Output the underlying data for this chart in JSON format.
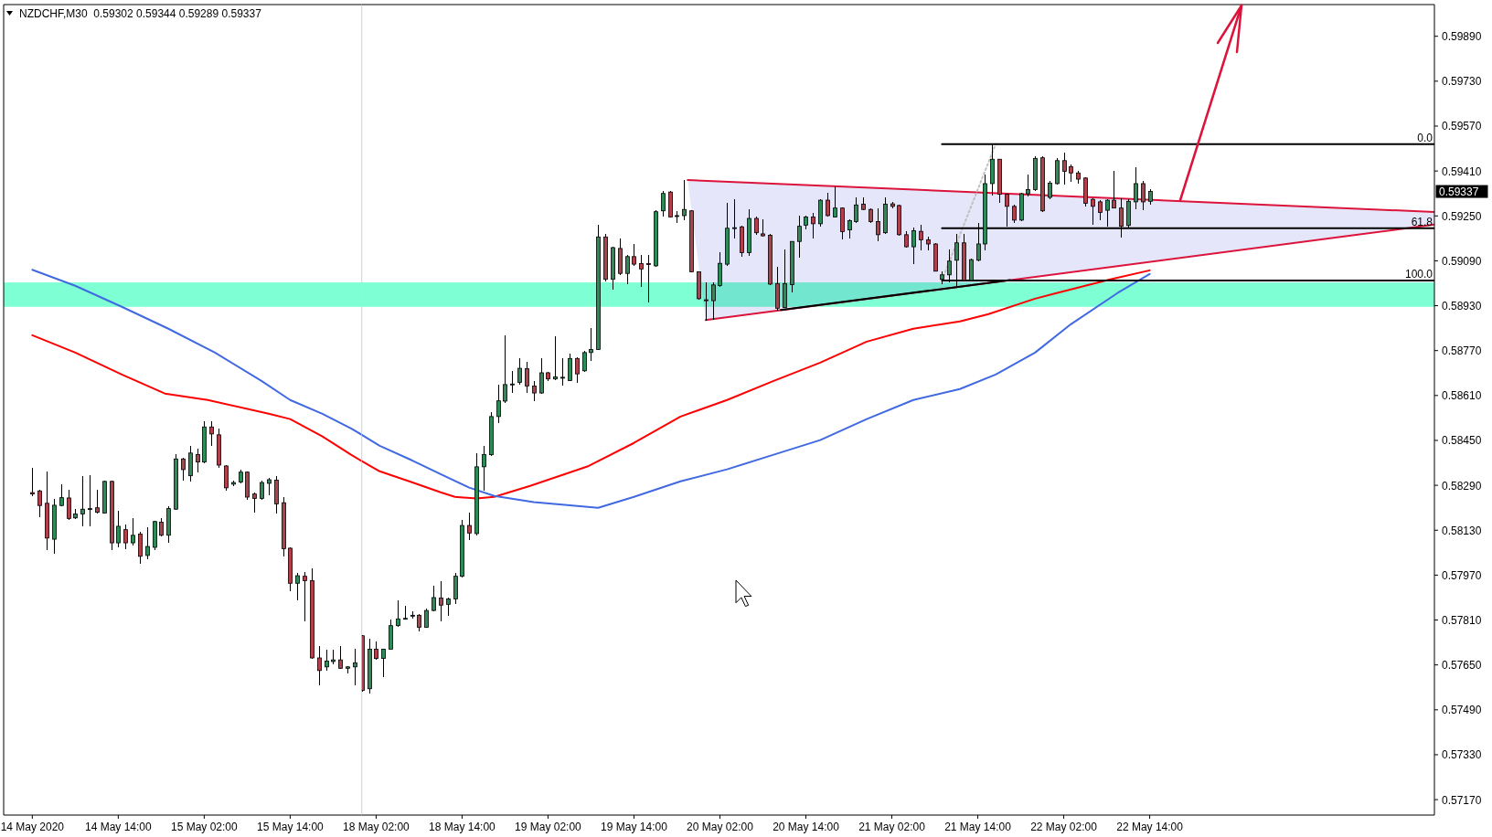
{
  "chart_data": [
    {
      "type": "candlestick",
      "title": "NZDCHF,M30  0.59302 0.59344 0.59289 0.59337",
      "tick_labels": "x",
      "xlim": [
        "2020-05-13T22:00",
        "2020-05-16T00:00"
      ],
      "ylim": [
        0.57115,
        0.60003
      ],
      "xticks": [
        {
          "value": "2020-05-14T02:00",
          "label": "14 May 2020"
        },
        {
          "value": "2020-05-14T14:00",
          "label": "14 May 14:00"
        },
        {
          "value": "2020-05-15T02:00",
          "label": "15 May 02:00"
        },
        {
          "value": "2020-05-15T14:00",
          "label": "15 May 14:00"
        }
      ],
      "x": [
        "2020-05-14T02:00",
        "2020-05-14T03:00",
        "2020-05-14T04:00",
        "2020-05-14T05:00",
        "2020-05-14T06:00",
        "2020-05-14T07:00",
        "2020-05-14T08:00",
        "2020-05-14T09:00",
        "2020-05-14T10:00",
        "2020-05-14T11:00",
        "2020-05-14T12:00",
        "2020-05-14T13:00",
        "2020-05-14T14:00",
        "2020-05-14T15:00",
        "2020-05-14T16:00",
        "2020-05-14T17:00",
        "2020-05-14T18:00",
        "2020-05-14T19:00",
        "2020-05-14T20:00",
        "2020-05-14T21:00",
        "2020-05-14T22:00",
        "2020-05-14T23:00",
        "2020-05-15T00:00",
        "2020-05-15T01:00",
        "2020-05-15T02:00",
        "2020-05-15T03:00",
        "2020-05-15T04:00",
        "2020-05-15T05:00",
        "2020-05-15T06:00",
        "2020-05-15T07:00",
        "2020-05-15T08:00",
        "2020-05-15T09:00",
        "2020-05-15T10:00",
        "2020-05-15T11:00",
        "2020-05-15T12:00",
        "2020-05-15T13:00",
        "2020-05-15T14:00",
        "2020-05-15T15:00",
        "2020-05-15T16:00",
        "2020-05-15T17:00",
        "2020-05-15T18:00",
        "2020-05-15T19:00",
        "2020-05-15T20:00",
        "2020-05-15T21:00",
        "2020-05-15T22:00",
        "2020-05-15T23:00"
      ],
      "ohlc": [
        [
          0.58264,
          0.58351,
          0.5825,
          0.58259
        ],
        [
          0.5827,
          0.58275,
          0.58178,
          0.58218
        ],
        [
          0.58226,
          0.5834,
          0.58058,
          0.58102
        ],
        [
          0.58098,
          0.58243,
          0.58047,
          0.58219
        ],
        [
          0.58218,
          0.58294,
          0.58216,
          0.58246
        ],
        [
          0.58245,
          0.58275,
          0.58167,
          0.58172
        ],
        [
          0.58174,
          0.58205,
          0.5817,
          0.58188
        ],
        [
          0.58188,
          0.58324,
          0.58145,
          0.58205
        ],
        [
          0.58205,
          0.58326,
          0.58145,
          0.58207
        ],
        [
          0.5821,
          0.58275,
          0.58188,
          0.58194
        ],
        [
          0.58191,
          0.58308,
          0.58188,
          0.58304
        ],
        [
          0.58304,
          0.58308,
          0.58058,
          0.58085
        ],
        [
          0.58085,
          0.58199,
          0.58069,
          0.58144
        ],
        [
          0.58132,
          0.5815,
          0.58064,
          0.58085
        ],
        [
          0.58085,
          0.58174,
          0.58074,
          0.58112
        ],
        [
          0.58116,
          0.58123,
          0.58009,
          0.58037
        ],
        [
          0.5804,
          0.5814,
          0.58026,
          0.58072
        ],
        [
          0.58069,
          0.58163,
          0.58058,
          0.58161
        ],
        [
          0.58159,
          0.58172,
          0.58107,
          0.58112
        ],
        [
          0.58112,
          0.58216,
          0.58085,
          0.58207
        ],
        [
          0.58205,
          0.584,
          0.58202,
          0.58384
        ],
        [
          0.58384,
          0.58387,
          0.58308,
          0.58346
        ],
        [
          0.58324,
          0.58432,
          0.58302,
          0.58405
        ],
        [
          0.584,
          0.58422,
          0.58335,
          0.58373
        ],
        [
          0.58373,
          0.58519,
          0.5837,
          0.58498
        ],
        [
          0.58498,
          0.58519,
          0.58432,
          0.58473
        ],
        [
          0.5847,
          0.58492,
          0.58351,
          0.58362
        ],
        [
          0.58359,
          0.58362,
          0.5827,
          0.58281
        ],
        [
          0.58294,
          0.58308,
          0.58286,
          0.583
        ],
        [
          0.58302,
          0.58346,
          0.58297,
          0.58337
        ],
        [
          0.58337,
          0.5834,
          0.58237,
          0.58248
        ],
        [
          0.58259,
          0.58264,
          0.58194,
          0.58243
        ],
        [
          0.58243,
          0.58308,
          0.58237,
          0.583
        ],
        [
          0.58297,
          0.58318,
          0.58253,
          0.5831
        ],
        [
          0.58308,
          0.58324,
          0.58188,
          0.58224
        ],
        [
          0.58228,
          0.58248,
          0.58036,
          0.58064
        ],
        [
          0.58066,
          0.58069,
          0.57912,
          0.57941
        ],
        [
          0.57941,
          0.57977,
          0.57879,
          0.57968
        ],
        [
          0.57966,
          0.57982,
          0.57805,
          0.5795
        ],
        [
          0.5795,
          0.57995,
          0.57673,
          0.57675
        ],
        [
          0.57675,
          0.57716,
          0.57578,
          0.5763
        ],
        [
          0.57643,
          0.57703,
          0.5763,
          0.57664
        ],
        [
          0.57662,
          0.57703,
          0.57651,
          0.57668
        ],
        [
          0.57668,
          0.57716,
          0.57635,
          0.57638
        ],
        [
          0.57638,
          0.57646,
          0.57619,
          0.57643
        ],
        [
          0.57643,
          0.57706,
          0.57578,
          0.57657
        ]
      ],
      "bands": [
        {
          "axis": "y",
          "from": 0.58926,
          "to": 0.59013,
          "color": "#7fffd4"
        }
      ],
      "series": [
        {
          "type": "line",
          "color": "#ff0000",
          "x": [
            "2020-05-14T02:00",
            "2020-05-14T08:00",
            "2020-05-14T14:30",
            "2020-05-14T20:30",
            "2020-05-15T02:30",
            "2020-05-15T11:00",
            "2020-05-15T14:00",
            "2020-05-15T18:30",
            "2020-05-15T22:30",
            "2020-05-16T00:00"
          ],
          "values": [
            0.58825,
            0.58763,
            0.58685,
            0.58617,
            0.58594,
            0.58545,
            0.58526,
            0.58464,
            0.58399,
            0.58376
          ]
        },
        {
          "type": "line",
          "color": "#4169e1",
          "x": [
            "2020-05-14T02:00",
            "2020-05-14T08:00",
            "2020-05-14T14:30",
            "2020-05-14T21:00",
            "2020-05-15T03:30",
            "2020-05-15T10:00",
            "2020-05-15T14:00",
            "2020-05-15T18:30",
            "2020-05-15T22:30",
            "2020-05-16T00:00"
          ],
          "values": [
            0.59058,
            0.59001,
            0.58926,
            0.58848,
            0.58763,
            0.58662,
            0.58594,
            0.58545,
            0.58493,
            0.5847
          ]
        }
      ]
    },
    {
      "type": "candlestick",
      "xlim": [
        "2020-05-18T00:00",
        "2020-05-24T05:45"
      ],
      "ylim": [
        0.57115,
        0.60003
      ],
      "xticks": [
        {
          "value": "2020-05-18T02:00",
          "label": "18 May 02:00"
        },
        {
          "value": "2020-05-18T14:00",
          "label": "18 May 14:00"
        },
        {
          "value": "2020-05-19T02:00",
          "label": "19 May 02:00"
        },
        {
          "value": "2020-05-19T14:00",
          "label": "19 May 14:00"
        },
        {
          "value": "2020-05-20T02:00",
          "label": "20 May 02:00"
        },
        {
          "value": "2020-05-20T14:00",
          "label": "20 May 14:00"
        },
        {
          "value": "2020-05-21T02:00",
          "label": "21 May 02:00"
        },
        {
          "value": "2020-05-21T14:00",
          "label": "21 May 14:00"
        },
        {
          "value": "2020-05-22T02:00",
          "label": "22 May 02:00"
        },
        {
          "value": "2020-05-22T14:00",
          "label": "22 May 14:00"
        }
      ],
      "yticks": [
        {
          "value": 0.5717,
          "label": "0.57170"
        },
        {
          "value": 0.5733,
          "label": "0.57330"
        },
        {
          "value": 0.5749,
          "label": "0.57490"
        },
        {
          "value": 0.5765,
          "label": "0.57650"
        },
        {
          "value": 0.5781,
          "label": "0.57810"
        },
        {
          "value": 0.5797,
          "label": "0.57970"
        },
        {
          "value": 0.5813,
          "label": "0.58130"
        },
        {
          "value": 0.5829,
          "label": "0.58290"
        },
        {
          "value": 0.5845,
          "label": "0.58450"
        },
        {
          "value": 0.5861,
          "label": "0.58610"
        },
        {
          "value": 0.5877,
          "label": "0.58770"
        },
        {
          "value": 0.5893,
          "label": "0.58930"
        },
        {
          "value": 0.5909,
          "label": "0.59090"
        },
        {
          "value": 0.5925,
          "label": "0.59250"
        },
        {
          "value": 0.5941,
          "label": "0.59410"
        },
        {
          "value": 0.5957,
          "label": "0.59570"
        },
        {
          "value": 0.5973,
          "label": "0.59730"
        },
        {
          "value": 0.5989,
          "label": "0.59890"
        }
      ],
      "x": [
        "2020-05-18T00:00",
        "2020-05-18T01:00",
        "2020-05-18T02:00",
        "2020-05-18T03:00",
        "2020-05-18T04:00",
        "2020-05-18T05:00",
        "2020-05-18T06:00",
        "2020-05-18T07:00",
        "2020-05-18T08:00",
        "2020-05-18T09:00",
        "2020-05-18T10:00",
        "2020-05-18T11:00",
        "2020-05-18T12:00",
        "2020-05-18T13:00",
        "2020-05-18T14:00",
        "2020-05-18T15:00",
        "2020-05-18T16:00",
        "2020-05-18T17:00",
        "2020-05-18T18:00",
        "2020-05-18T19:00",
        "2020-05-18T20:00",
        "2020-05-18T21:00",
        "2020-05-18T22:00",
        "2020-05-18T23:00",
        "2020-05-19T00:00",
        "2020-05-19T01:00",
        "2020-05-19T02:00",
        "2020-05-19T03:00",
        "2020-05-19T04:00",
        "2020-05-19T05:00",
        "2020-05-19T06:00",
        "2020-05-19T07:00",
        "2020-05-19T08:00",
        "2020-05-19T09:00",
        "2020-05-19T10:00",
        "2020-05-19T11:00",
        "2020-05-19T12:00",
        "2020-05-19T13:00",
        "2020-05-19T14:00",
        "2020-05-19T15:00",
        "2020-05-19T16:00",
        "2020-05-19T17:00",
        "2020-05-19T18:00",
        "2020-05-19T19:00",
        "2020-05-19T20:00",
        "2020-05-19T21:00",
        "2020-05-19T22:00",
        "2020-05-19T23:00",
        "2020-05-20T00:00",
        "2020-05-20T01:00",
        "2020-05-20T02:00",
        "2020-05-20T03:00",
        "2020-05-20T04:00",
        "2020-05-20T05:00",
        "2020-05-20T06:00",
        "2020-05-20T07:00",
        "2020-05-20T08:00",
        "2020-05-20T09:00",
        "2020-05-20T10:00",
        "2020-05-20T11:00",
        "2020-05-20T12:00",
        "2020-05-20T13:00",
        "2020-05-20T14:00",
        "2020-05-20T15:00",
        "2020-05-20T16:00",
        "2020-05-20T17:00",
        "2020-05-20T18:00",
        "2020-05-20T19:00",
        "2020-05-20T20:00",
        "2020-05-20T21:00",
        "2020-05-20T22:00",
        "2020-05-20T23:00",
        "2020-05-21T00:00",
        "2020-05-21T01:00",
        "2020-05-21T02:00",
        "2020-05-21T03:00",
        "2020-05-21T04:00",
        "2020-05-21T05:00",
        "2020-05-21T06:00",
        "2020-05-21T07:00",
        "2020-05-21T08:00",
        "2020-05-21T09:00",
        "2020-05-21T10:00",
        "2020-05-21T11:00",
        "2020-05-21T12:00",
        "2020-05-21T13:00",
        "2020-05-21T14:00",
        "2020-05-21T15:00",
        "2020-05-21T16:00",
        "2020-05-21T17:00",
        "2020-05-21T18:00",
        "2020-05-21T19:00",
        "2020-05-21T20:00",
        "2020-05-21T21:00",
        "2020-05-21T22:00",
        "2020-05-21T23:00",
        "2020-05-22T00:00",
        "2020-05-22T01:00",
        "2020-05-22T02:00",
        "2020-05-22T03:00",
        "2020-05-22T04:00",
        "2020-05-22T05:00",
        "2020-05-22T06:00",
        "2020-05-22T07:00",
        "2020-05-22T08:00",
        "2020-05-22T09:00",
        "2020-05-22T10:00",
        "2020-05-22T11:00",
        "2020-05-22T12:00",
        "2020-05-22T13:00",
        "2020-05-22T14:00"
      ],
      "ohlc": [
        [
          0.57754,
          0.57758,
          0.57556,
          0.57559
        ],
        [
          0.57565,
          0.57744,
          0.57548,
          0.57706
        ],
        [
          0.57706,
          0.57733,
          0.57668,
          0.57673
        ],
        [
          0.57673,
          0.57708,
          0.57608,
          0.57706
        ],
        [
          0.57706,
          0.57812,
          0.57706,
          0.5779
        ],
        [
          0.5779,
          0.57879,
          0.57787,
          0.57814
        ],
        [
          0.57814,
          0.5786,
          0.57812,
          0.57816
        ],
        [
          0.57825,
          0.57841,
          0.57814,
          0.57827
        ],
        [
          0.57827,
          0.5783,
          0.57769,
          0.57784
        ],
        [
          0.57784,
          0.57852,
          0.57784,
          0.57844
        ],
        [
          0.57844,
          0.57933,
          0.57841,
          0.5789
        ],
        [
          0.57888,
          0.5795,
          0.57805,
          0.57863
        ],
        [
          0.57866,
          0.5789,
          0.57825,
          0.57885
        ],
        [
          0.57885,
          0.57979,
          0.57868,
          0.57966
        ],
        [
          0.57966,
          0.58167,
          0.57961,
          0.58147
        ],
        [
          0.58147,
          0.58194,
          0.58094,
          0.5812
        ],
        [
          0.58118,
          0.58405,
          0.58112,
          0.58356
        ],
        [
          0.58356,
          0.58432,
          0.5827,
          0.584
        ],
        [
          0.58399,
          0.58552,
          0.58396,
          0.58535
        ],
        [
          0.58535,
          0.58649,
          0.58513,
          0.58591
        ],
        [
          0.5859,
          0.58825,
          0.58584,
          0.58649
        ],
        [
          0.58649,
          0.58698,
          0.58619,
          0.58651
        ],
        [
          0.58657,
          0.58742,
          0.58649,
          0.58707
        ],
        [
          0.58706,
          0.58731,
          0.58619,
          0.58644
        ],
        [
          0.58644,
          0.5866,
          0.5859,
          0.58619
        ],
        [
          0.58619,
          0.58744,
          0.58617,
          0.58691
        ],
        [
          0.58691,
          0.58695,
          0.5866,
          0.58669
        ],
        [
          0.58669,
          0.58821,
          0.58664,
          0.58676
        ],
        [
          0.58673,
          0.58742,
          0.58644,
          0.58675
        ],
        [
          0.58663,
          0.58758,
          0.5866,
          0.58742
        ],
        [
          0.58742,
          0.58747,
          0.58655,
          0.58687
        ],
        [
          0.58698,
          0.58769,
          0.58695,
          0.58763
        ],
        [
          0.58763,
          0.5885,
          0.58734,
          0.58774
        ],
        [
          0.58774,
          0.59219,
          0.58771,
          0.59175
        ],
        [
          0.59175,
          0.59186,
          0.59018,
          0.59024
        ],
        [
          0.59024,
          0.5914,
          0.58988,
          0.59137
        ],
        [
          0.59134,
          0.5917,
          0.5904,
          0.59045
        ],
        [
          0.59045,
          0.5911,
          0.59007,
          0.59105
        ],
        [
          0.59105,
          0.5915,
          0.59072,
          0.59078
        ],
        [
          0.5908,
          0.5911,
          0.58996,
          0.59061
        ],
        [
          0.5908,
          0.5911,
          0.58942,
          0.59077
        ],
        [
          0.59072,
          0.5927,
          0.59067,
          0.59265
        ],
        [
          0.59268,
          0.59338,
          0.59246,
          0.5933
        ],
        [
          0.59335,
          0.59338,
          0.59244,
          0.59246
        ],
        [
          0.59249,
          0.59268,
          0.59224,
          0.59251
        ],
        [
          0.59251,
          0.59378,
          0.59235,
          0.59273
        ],
        [
          0.59268,
          0.5927,
          0.59048,
          0.59051
        ],
        [
          0.59051,
          0.59053,
          0.58951,
          0.58955
        ],
        [
          0.58951,
          0.59013,
          0.58877,
          0.58948
        ],
        [
          0.58948,
          0.59013,
          0.58879,
          0.59004
        ],
        [
          0.59002,
          0.59121,
          0.58996,
          0.59081
        ],
        [
          0.59078,
          0.59295,
          0.59072,
          0.59206
        ],
        [
          0.59205,
          0.59311,
          0.5917,
          0.59208
        ],
        [
          0.59211,
          0.59216,
          0.59105,
          0.59119
        ],
        [
          0.59119,
          0.59273,
          0.59107,
          0.59241
        ],
        [
          0.59241,
          0.59246,
          0.59181,
          0.5919
        ],
        [
          0.59186,
          0.59237,
          0.59175,
          0.59179
        ],
        [
          0.59181,
          0.59186,
          0.59005,
          0.59007
        ],
        [
          0.59009,
          0.59067,
          0.58912,
          0.58921
        ],
        [
          0.58923,
          0.59129,
          0.58921,
          0.59009
        ],
        [
          0.59005,
          0.59161,
          0.58977,
          0.59159
        ],
        [
          0.59159,
          0.59251,
          0.591,
          0.59213
        ],
        [
          0.59217,
          0.59251,
          0.59203,
          0.59246
        ],
        [
          0.59246,
          0.59262,
          0.5917,
          0.59222
        ],
        [
          0.59222,
          0.59311,
          0.59213,
          0.59306
        ],
        [
          0.59306,
          0.59333,
          0.59246,
          0.59251
        ],
        [
          0.59246,
          0.59354,
          0.59244,
          0.59278
        ],
        [
          0.59278,
          0.59281,
          0.59165,
          0.59194
        ],
        [
          0.592,
          0.59237,
          0.5917,
          0.59233
        ],
        [
          0.5923,
          0.59316,
          0.59226,
          0.59289
        ],
        [
          0.59292,
          0.59316,
          0.5927,
          0.59273
        ],
        [
          0.59273,
          0.59278,
          0.59226,
          0.5923
        ],
        [
          0.5923,
          0.59278,
          0.59159,
          0.59183
        ],
        [
          0.5919,
          0.59316,
          0.59186,
          0.59292
        ],
        [
          0.59293,
          0.593,
          0.59278,
          0.59284
        ],
        [
          0.59287,
          0.59289,
          0.59179,
          0.59183
        ],
        [
          0.59183,
          0.59197,
          0.59137,
          0.5914
        ],
        [
          0.5914,
          0.59208,
          0.59078,
          0.59197
        ],
        [
          0.59195,
          0.59219,
          0.59127,
          0.59165
        ],
        [
          0.59165,
          0.59175,
          0.59127,
          0.5915
        ],
        [
          0.5915,
          0.59154,
          0.59051,
          0.59053
        ],
        [
          0.59024,
          0.59051,
          0.59007,
          0.5904
        ],
        [
          0.5904,
          0.59129,
          0.59013,
          0.59089
        ],
        [
          0.59092,
          0.59186,
          0.58996,
          0.59154
        ],
        [
          0.59154,
          0.59186,
          0.59018,
          0.5902
        ],
        [
          0.5902,
          0.59099,
          0.59018,
          0.59094
        ],
        [
          0.59092,
          0.59224,
          0.59089,
          0.5915
        ],
        [
          0.5915,
          0.59398,
          0.59127,
          0.59365
        ],
        [
          0.59365,
          0.59506,
          0.59322,
          0.59452
        ],
        [
          0.59452,
          0.59454,
          0.59295,
          0.59327
        ],
        [
          0.59327,
          0.5933,
          0.59213,
          0.59284
        ],
        [
          0.59284,
          0.59289,
          0.59224,
          0.59235
        ],
        [
          0.59235,
          0.59333,
          0.5923,
          0.59329
        ],
        [
          0.59329,
          0.59396,
          0.5932,
          0.59344
        ],
        [
          0.59344,
          0.59461,
          0.59338,
          0.59455
        ],
        [
          0.59457,
          0.59461,
          0.59265,
          0.59268
        ],
        [
          0.59316,
          0.59376,
          0.59311,
          0.59367
        ],
        [
          0.59365,
          0.59457,
          0.5936,
          0.59447
        ],
        [
          0.59447,
          0.59476,
          0.59363,
          0.59409
        ],
        [
          0.59425,
          0.59432,
          0.59371,
          0.59403
        ],
        [
          0.59403,
          0.59409,
          0.59365,
          0.59381
        ],
        [
          0.59385,
          0.59387,
          0.59284,
          0.59295
        ],
        [
          0.59309,
          0.59313,
          0.59219,
          0.59284
        ],
        [
          0.593,
          0.59306,
          0.59235,
          0.59262
        ],
        [
          0.5927,
          0.59311,
          0.59213,
          0.59306
        ],
        [
          0.59306,
          0.59409,
          0.59276,
          0.59278
        ],
        [
          0.59278,
          0.59313,
          0.59172,
          0.59213
        ],
        [
          0.59216,
          0.59309,
          0.59208,
          0.59302
        ],
        [
          0.593,
          0.59422,
          0.59273,
          0.59365
        ],
        [
          0.59365,
          0.59376,
          0.5927,
          0.593
        ],
        [
          0.59302,
          0.59344,
          0.59289,
          0.59337
        ]
      ],
      "bands": [
        {
          "axis": "y",
          "from": 0.58926,
          "to": 0.59013,
          "color": "#7fffd4"
        }
      ],
      "series": [
        {
          "type": "line",
          "color": "#ff0000",
          "x": [
            "2020-05-18T00:00",
            "2020-05-18T02:30",
            "2020-05-18T07:00",
            "2020-05-18T11:00",
            "2020-05-18T13:00",
            "2020-05-18T16:00",
            "2020-05-18T18:30",
            "2020-05-18T23:30",
            "2020-05-19T07:30",
            "2020-05-19T14:00",
            "2020-05-19T20:30",
            "2020-05-20T03:00",
            "2020-05-20T09:30",
            "2020-05-20T16:00",
            "2020-05-20T22:30",
            "2020-05-21T05:00",
            "2020-05-21T11:30",
            "2020-05-21T15:30",
            "2020-05-21T22:00",
            "2020-05-22T01:00",
            "2020-05-22T08:30",
            "2020-05-22T14:00"
          ],
          "values": [
            0.58376,
            0.5834,
            0.58301,
            0.58265,
            0.58249,
            0.58243,
            0.58249,
            0.58288,
            0.58357,
            0.58441,
            0.58535,
            0.58594,
            0.58662,
            0.58727,
            0.58802,
            0.58848,
            0.58874,
            0.589,
            0.58955,
            0.58975,
            0.59024,
            0.59056
          ]
        },
        {
          "type": "line",
          "color": "#4169e1",
          "x": [
            "2020-05-18T00:00",
            "2020-05-18T02:30",
            "2020-05-18T07:00",
            "2020-05-18T11:00",
            "2020-05-18T15:00",
            "2020-05-18T18:30",
            "2020-05-19T00:00",
            "2020-05-19T09:00",
            "2020-05-19T14:00",
            "2020-05-19T20:30",
            "2020-05-20T03:00",
            "2020-05-20T09:30",
            "2020-05-20T16:00",
            "2020-05-20T22:30",
            "2020-05-21T05:00",
            "2020-05-21T11:30",
            "2020-05-21T16:30",
            "2020-05-21T22:00",
            "2020-05-22T03:00",
            "2020-05-22T09:30",
            "2020-05-22T14:00"
          ],
          "values": [
            0.5847,
            0.58431,
            0.58379,
            0.5833,
            0.58282,
            0.58252,
            0.5823,
            0.5821,
            0.58249,
            0.58304,
            0.58347,
            0.58399,
            0.58451,
            0.58526,
            0.58594,
            0.58633,
            0.58685,
            0.58763,
            0.58864,
            0.58975,
            0.59043
          ]
        },
        {
          "type": "line",
          "color": "#dc143c",
          "x": [
            "2020-05-19T21:30",
            "2020-05-24T05:45"
          ],
          "values": [
            0.59378,
            0.59264
          ]
        },
        {
          "type": "line",
          "color": "#dc143c",
          "x": [
            "2020-05-20T00:00",
            "2020-05-24T05:45"
          ],
          "values": [
            0.58879,
            0.59219
          ]
        },
        {
          "type": "line",
          "color": "#000000",
          "x": [
            "2020-05-20T10:30",
            "2020-05-21T18:30"
          ],
          "values": [
            0.58915,
            0.59021
          ]
        },
        {
          "type": "line",
          "color": "#c0c0c0",
          "line_style": "dotted",
          "x": [
            "2020-05-21T09:00",
            "2020-05-21T16:30"
          ],
          "values": [
            0.5902,
            0.59506
          ]
        },
        {
          "type": "line",
          "color": "#000000",
          "x": [
            "2020-05-21T09:00",
            "2020-05-24T05:45"
          ],
          "values": [
            0.59506,
            0.59506
          ]
        },
        {
          "type": "line",
          "color": "#000000",
          "x": [
            "2020-05-21T09:00",
            "2020-05-24T05:45"
          ],
          "values": [
            0.59206,
            0.59206
          ]
        },
        {
          "type": "line",
          "color": "#000000",
          "x": [
            "2020-05-21T09:00",
            "2020-05-24T05:45"
          ],
          "values": [
            0.5902,
            0.5902
          ]
        }
      ],
      "annotations": [
        "0.59337",
        {
          "text": "0.0",
          "x": "2020-05-24T05:45",
          "y": 0.59506
        },
        {
          "text": "61.8",
          "x": "2020-05-24T05:45",
          "y": 0.59206
        },
        {
          "text": "100.0",
          "x": "2020-05-24T05:45",
          "y": 0.5902
        }
      ]
    }
  ]
}
